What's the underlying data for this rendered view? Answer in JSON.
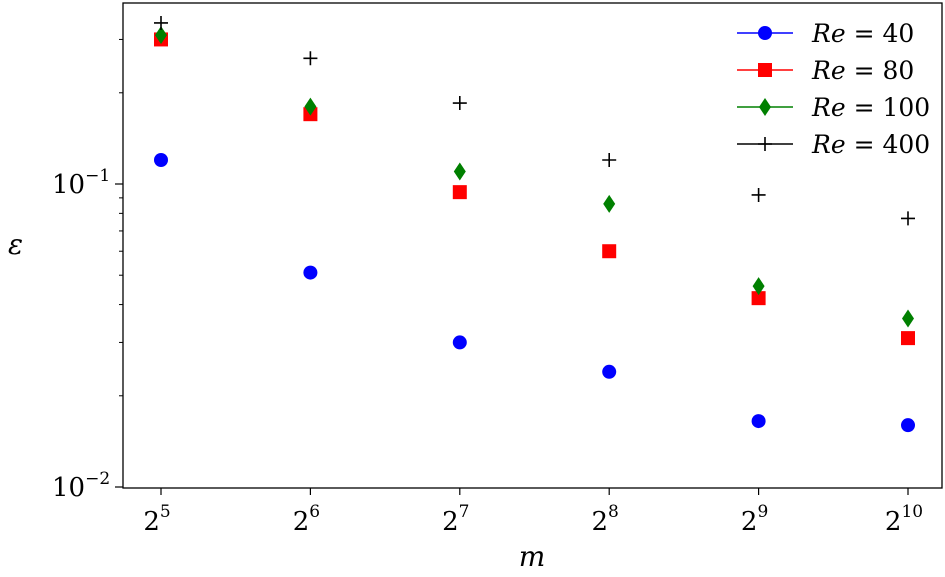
{
  "chart_data": {
    "type": "scatter",
    "title": "",
    "xlabel": "m",
    "ylabel": "ε",
    "yscale": "log",
    "xscale": "log2",
    "ylim": [
      0.01,
      0.4
    ],
    "x": [
      32,
      64,
      128,
      256,
      512,
      1024
    ],
    "xtick_labels": [
      {
        "base": "2",
        "exp": "5"
      },
      {
        "base": "2",
        "exp": "6"
      },
      {
        "base": "2",
        "exp": "7"
      },
      {
        "base": "2",
        "exp": "8"
      },
      {
        "base": "2",
        "exp": "9"
      },
      {
        "base": "2",
        "exp": "10"
      }
    ],
    "ytick_labels": [
      {
        "value": 0.1,
        "base": "10",
        "exp": "−1"
      },
      {
        "value": 0.01,
        "base": "10",
        "exp": "−2"
      }
    ],
    "legend": {
      "placement": "top-right"
    },
    "series": [
      {
        "name_var": "Re",
        "name_eq": " = ",
        "name_val": "40",
        "marker": "circle",
        "color": "#0000ff",
        "values": [
          0.12,
          0.051,
          0.03,
          0.024,
          0.0165,
          0.016
        ]
      },
      {
        "name_var": "Re",
        "name_eq": " = ",
        "name_val": "80",
        "marker": "square",
        "color": "#ff0000",
        "values": [
          0.3,
          0.17,
          0.094,
          0.06,
          0.042,
          0.031
        ]
      },
      {
        "name_var": "Re",
        "name_eq": " = ",
        "name_val": "100",
        "marker": "diamond",
        "color": "#008000",
        "values": [
          0.31,
          0.18,
          0.11,
          0.086,
          0.046,
          0.036
        ]
      },
      {
        "name_var": "Re",
        "name_eq": " = ",
        "name_val": "400",
        "marker": "plus",
        "color": "#000000",
        "values": [
          0.34,
          0.26,
          0.185,
          0.12,
          0.092,
          0.077
        ]
      }
    ]
  }
}
